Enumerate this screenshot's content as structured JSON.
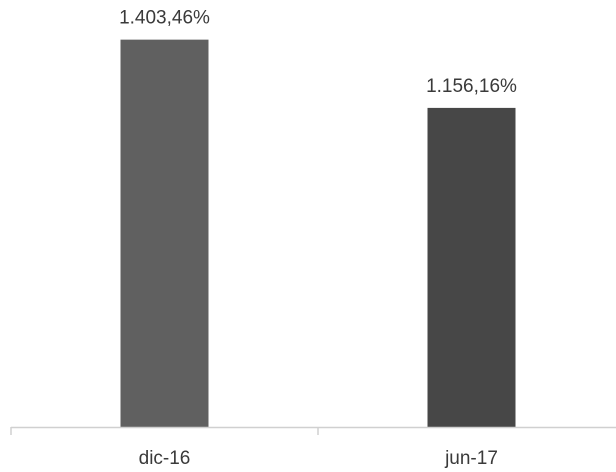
{
  "chart_data": {
    "type": "bar",
    "title": "",
    "xlabel": "",
    "ylabel": "",
    "categories": [
      "dic-16",
      "jun-17"
    ],
    "values": [
      1403.46,
      1156.16
    ],
    "value_labels": [
      "1.403,46%",
      "1.156,16%"
    ],
    "bar_colors": [
      "#606060",
      "#474747"
    ],
    "axis_color": "#d0d0d0",
    "ylim": [
      0,
      1500
    ],
    "grid": false,
    "legend": "none"
  }
}
